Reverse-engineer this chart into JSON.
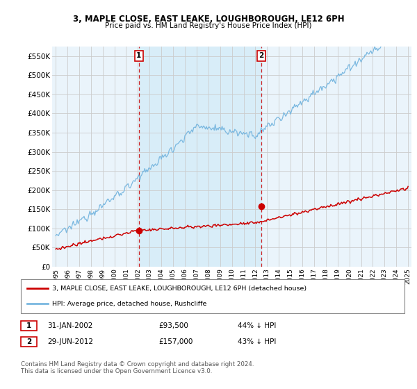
{
  "title": "3, MAPLE CLOSE, EAST LEAKE, LOUGHBOROUGH, LE12 6PH",
  "subtitle": "Price paid vs. HM Land Registry's House Price Index (HPI)",
  "ylabel_ticks": [
    "£0",
    "£50K",
    "£100K",
    "£150K",
    "£200K",
    "£250K",
    "£300K",
    "£350K",
    "£400K",
    "£450K",
    "£500K",
    "£550K"
  ],
  "ytick_values": [
    0,
    50000,
    100000,
    150000,
    200000,
    250000,
    300000,
    350000,
    400000,
    450000,
    500000,
    550000
  ],
  "ylim": [
    0,
    575000
  ],
  "x_start_year": 1995,
  "x_end_year": 2025,
  "sale1_date": 2002.08,
  "sale1_price": 93500,
  "sale1_label": "1",
  "sale2_date": 2012.5,
  "sale2_price": 157000,
  "sale2_label": "2",
  "hpi_color": "#7ab8e0",
  "price_color": "#cc0000",
  "vline_color": "#cc0000",
  "shade_color": "#d8edf8",
  "grid_color": "#cccccc",
  "bg_color": "#eaf4fb",
  "plot_bg": "#ffffff",
  "legend1_label": "3, MAPLE CLOSE, EAST LEAKE, LOUGHBOROUGH, LE12 6PH (detached house)",
  "legend2_label": "HPI: Average price, detached house, Rushcliffe",
  "table_row1": [
    "1",
    "31-JAN-2002",
    "£93,500",
    "44% ↓ HPI"
  ],
  "table_row2": [
    "2",
    "29-JUN-2012",
    "£157,000",
    "43% ↓ HPI"
  ],
  "footnote": "Contains HM Land Registry data © Crown copyright and database right 2024.\nThis data is licensed under the Open Government Licence v3.0."
}
